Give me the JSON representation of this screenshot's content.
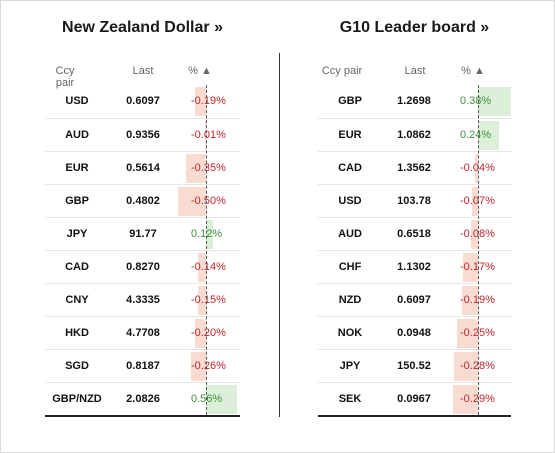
{
  "left_panel": {
    "title": "New Zealand Dollar »",
    "headers": {
      "pair": "Ccy pair",
      "last": "Last",
      "pct": "% ▲"
    },
    "rows": [
      {
        "pair": "USD",
        "last": "0.6097",
        "pct": "-0.19%",
        "value": -0.19
      },
      {
        "pair": "AUD",
        "last": "0.9356",
        "pct": "-0.01%",
        "value": -0.01
      },
      {
        "pair": "EUR",
        "last": "0.5614",
        "pct": "-0.35%",
        "value": -0.35
      },
      {
        "pair": "GBP",
        "last": "0.4802",
        "pct": "-0.50%",
        "value": -0.5
      },
      {
        "pair": "JPY",
        "last": "91.77",
        "pct": "0.12%",
        "value": 0.12
      },
      {
        "pair": "CAD",
        "last": "0.8270",
        "pct": "-0.14%",
        "value": -0.14
      },
      {
        "pair": "CNY",
        "last": "4.3335",
        "pct": "-0.15%",
        "value": -0.15
      },
      {
        "pair": "HKD",
        "last": "4.7708",
        "pct": "-0.20%",
        "value": -0.2
      },
      {
        "pair": "SGD",
        "last": "0.8187",
        "pct": "-0.26%",
        "value": -0.26
      },
      {
        "pair": "GBP/NZD",
        "last": "2.0826",
        "pct": "0.56%",
        "value": 0.56
      }
    ]
  },
  "right_panel": {
    "title": "G10 Leader board »",
    "headers": {
      "pair": "Ccy pair",
      "last": "Last",
      "pct": "% ▲"
    },
    "rows": [
      {
        "pair": "GBP",
        "last": "1.2698",
        "pct": "0.38%",
        "value": 0.38
      },
      {
        "pair": "EUR",
        "last": "1.0862",
        "pct": "0.24%",
        "value": 0.24
      },
      {
        "pair": "CAD",
        "last": "1.3562",
        "pct": "-0.04%",
        "value": -0.04
      },
      {
        "pair": "USD",
        "last": "103.78",
        "pct": "-0.07%",
        "value": -0.07
      },
      {
        "pair": "AUD",
        "last": "0.6518",
        "pct": "-0.08%",
        "value": -0.08
      },
      {
        "pair": "CHF",
        "last": "1.1302",
        "pct": "-0.17%",
        "value": -0.17
      },
      {
        "pair": "NZD",
        "last": "0.6097",
        "pct": "-0.19%",
        "value": -0.19
      },
      {
        "pair": "NOK",
        "last": "0.0948",
        "pct": "-0.25%",
        "value": -0.25
      },
      {
        "pair": "JPY",
        "last": "150.52",
        "pct": "-0.28%",
        "value": -0.28
      },
      {
        "pair": "SEK",
        "last": "0.0967",
        "pct": "-0.29%",
        "value": -0.29
      }
    ]
  },
  "colors": {
    "negative_text": "#c0262d",
    "positive_text": "#3d8f3d",
    "negative_bar": "#f8dcd2",
    "positive_bar": "#dcefd8"
  }
}
